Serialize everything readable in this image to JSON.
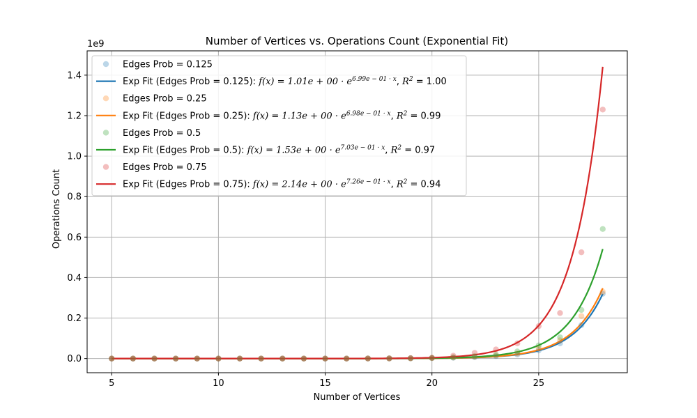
{
  "chart_data": {
    "type": "scatter",
    "title": "Number of Vertices vs. Operations Count (Exponential Fit)",
    "xlabel": "Number of Vertices",
    "ylabel": "Operations Count",
    "y_scale_label": "1e9",
    "xlim": [
      3.85,
      29.15
    ],
    "ylim": [
      -0.07,
      1.52
    ],
    "y_units": "1e9",
    "xticks": [
      5,
      10,
      15,
      20,
      25
    ],
    "yticks": [
      0.0,
      0.2,
      0.4,
      0.6,
      0.8,
      1.0,
      1.2,
      1.4
    ],
    "grid": true,
    "legend_position": "upper-left",
    "series": [
      {
        "name": "Edges Prob = 0.125",
        "color": "#1f77b4",
        "x": [
          5,
          6,
          7,
          8,
          9,
          10,
          11,
          12,
          13,
          14,
          15,
          16,
          17,
          18,
          19,
          20,
          21,
          22,
          23,
          24,
          25,
          26,
          27,
          28
        ],
        "y": [
          0,
          0,
          0,
          0,
          0,
          0,
          0,
          0,
          0,
          0,
          0,
          0,
          0.0002,
          0.0005,
          0.001,
          0.002,
          0.004,
          0.007,
          0.012,
          0.02,
          0.04,
          0.075,
          0.165,
          0.32
        ]
      },
      {
        "name": "Edges Prob = 0.25",
        "color": "#ff7f0e",
        "x": [
          5,
          6,
          7,
          8,
          9,
          10,
          11,
          12,
          13,
          14,
          15,
          16,
          17,
          18,
          19,
          20,
          21,
          22,
          23,
          24,
          25,
          26,
          27,
          28
        ],
        "y": [
          0,
          0,
          0,
          0,
          0,
          0,
          0,
          0,
          0,
          0,
          0,
          0,
          0.0002,
          0.0005,
          0.001,
          0.002,
          0.005,
          0.009,
          0.015,
          0.025,
          0.05,
          0.09,
          0.21,
          0.33
        ]
      },
      {
        "name": "Edges Prob = 0.5",
        "color": "#2ca02c",
        "x": [
          5,
          6,
          7,
          8,
          9,
          10,
          11,
          12,
          13,
          14,
          15,
          16,
          17,
          18,
          19,
          20,
          21,
          22,
          23,
          24,
          25,
          26,
          27,
          28
        ],
        "y": [
          0,
          0,
          0,
          0,
          0,
          0,
          0,
          0,
          0,
          0,
          0,
          0,
          0.0003,
          0.0006,
          0.0012,
          0.003,
          0.006,
          0.012,
          0.02,
          0.035,
          0.065,
          0.105,
          0.24,
          0.64
        ]
      },
      {
        "name": "Edges Prob = 0.75",
        "color": "#d62728",
        "x": [
          5,
          6,
          7,
          8,
          9,
          10,
          11,
          12,
          13,
          14,
          15,
          16,
          17,
          18,
          19,
          20,
          21,
          22,
          23,
          24,
          25,
          26,
          27,
          28
        ],
        "y": [
          0,
          0,
          0,
          0,
          0,
          0,
          0,
          0,
          0,
          0,
          0,
          0,
          0.0005,
          0.001,
          0.002,
          0.004,
          0.014,
          0.028,
          0.045,
          0.075,
          0.16,
          0.225,
          0.525,
          1.23
        ]
      }
    ],
    "fits": [
      {
        "name": "Exp Fit (Edges Prob = 0.125)",
        "color": "#1f77b4",
        "a": 1.01,
        "b": 0.699,
        "r2": "1.00",
        "a_text": "1.01e + 00",
        "b_text": "6.99e − 01"
      },
      {
        "name": "Exp Fit (Edges Prob = 0.25)",
        "color": "#ff7f0e",
        "a": 1.13,
        "b": 0.698,
        "r2": "0.99",
        "a_text": "1.13e + 00",
        "b_text": "6.98e − 01"
      },
      {
        "name": "Exp Fit (Edges Prob = 0.5)",
        "color": "#2ca02c",
        "a": 1.53,
        "b": 0.703,
        "r2": "0.97",
        "a_text": "1.53e + 00",
        "b_text": "7.03e − 01"
      },
      {
        "name": "Exp Fit (Edges Prob = 0.75)",
        "color": "#d62728",
        "a": 2.14,
        "b": 0.726,
        "r2": "0.94",
        "a_text": "2.14e + 00",
        "b_text": "7.26e − 01"
      }
    ]
  }
}
